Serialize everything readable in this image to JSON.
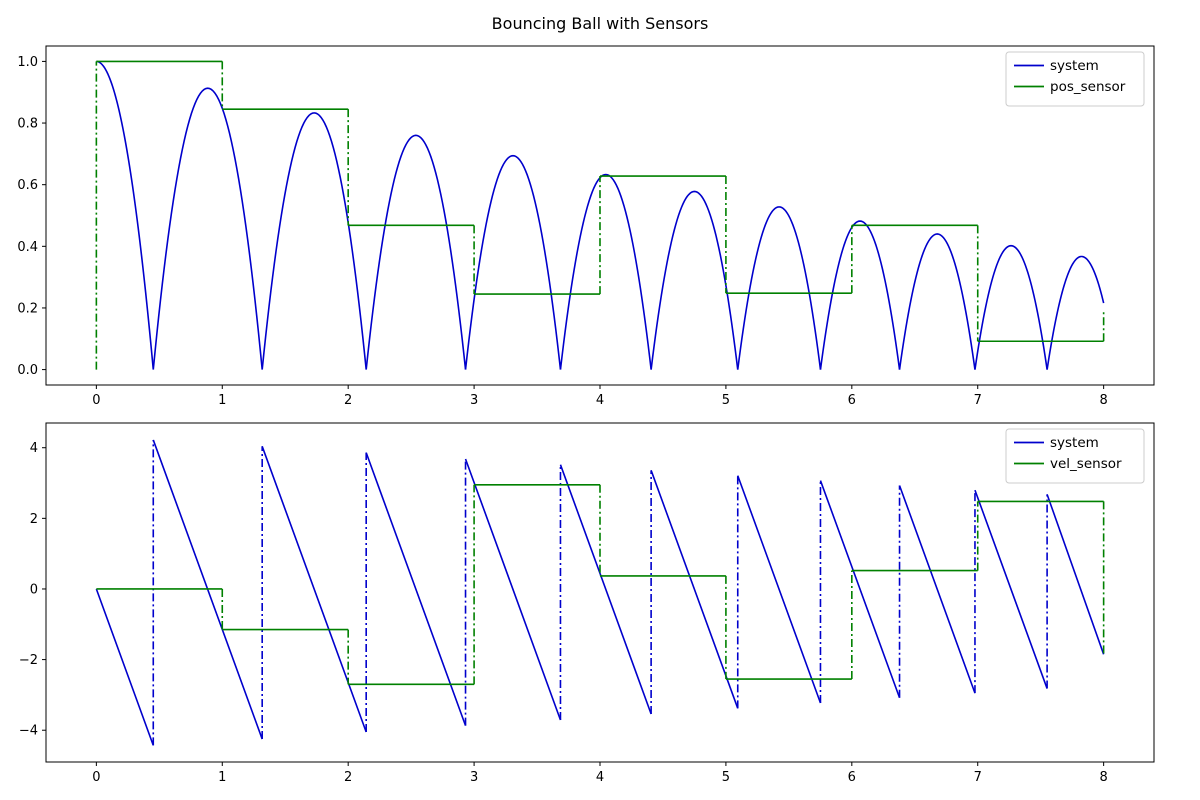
{
  "title": "Bouncing Ball with Sensors",
  "colors": {
    "system": "#0000cc",
    "sensor": "#008000"
  },
  "chart_data": [
    {
      "type": "line",
      "xlim": [
        -0.4,
        8.4
      ],
      "ylim": [
        -0.05,
        1.05
      ],
      "xticks": [
        0,
        1,
        2,
        3,
        4,
        5,
        6,
        7,
        8
      ],
      "xtick_labels": [
        "0",
        "1",
        "2",
        "3",
        "4",
        "5",
        "6",
        "7",
        "8"
      ],
      "yticks": [
        0.0,
        0.2,
        0.4,
        0.6,
        0.8,
        1.0
      ],
      "ytick_labels": [
        "0.0",
        "0.2",
        "0.4",
        "0.6",
        "0.8",
        "1.0"
      ],
      "legend_position": "top-right",
      "series": [
        {
          "name": "system",
          "style": "solid",
          "arcs": [
            {
              "x0": 0.0,
              "x1": 0.452,
              "peak": 1.0,
              "peak_at": "start"
            },
            {
              "x0": 0.452,
              "x1": 1.317,
              "peak": 0.913
            },
            {
              "x0": 1.317,
              "x1": 2.143,
              "peak": 0.833
            },
            {
              "x0": 2.143,
              "x1": 2.932,
              "peak": 0.76
            },
            {
              "x0": 2.932,
              "x1": 3.686,
              "peak": 0.694
            },
            {
              "x0": 3.686,
              "x1": 4.406,
              "peak": 0.633
            },
            {
              "x0": 4.406,
              "x1": 5.094,
              "peak": 0.578
            },
            {
              "x0": 5.094,
              "x1": 5.751,
              "peak": 0.528
            },
            {
              "x0": 5.751,
              "x1": 6.379,
              "peak": 0.482
            },
            {
              "x0": 6.379,
              "x1": 6.978,
              "peak": 0.44
            },
            {
              "x0": 6.978,
              "x1": 7.551,
              "peak": 0.402
            },
            {
              "x0": 7.551,
              "x1": 8.098,
              "peak": 0.367,
              "end_x": 8.0
            }
          ]
        },
        {
          "name": "pos_sensor",
          "style": "step",
          "start": [
            0,
            0.0
          ],
          "steps": [
            [
              0,
              1,
              1.0
            ],
            [
              1,
              2,
              0.845
            ],
            [
              2,
              3,
              0.468
            ],
            [
              3,
              4,
              0.245
            ],
            [
              4,
              5,
              0.628
            ],
            [
              5,
              6,
              0.248
            ],
            [
              6,
              7,
              0.468
            ],
            [
              7,
              8,
              0.092
            ]
          ],
          "end": [
            8,
            0.19
          ]
        }
      ]
    },
    {
      "type": "line",
      "xlim": [
        -0.4,
        8.4
      ],
      "ylim": [
        -4.9,
        4.7
      ],
      "xticks": [
        0,
        1,
        2,
        3,
        4,
        5,
        6,
        7,
        8
      ],
      "xtick_labels": [
        "0",
        "1",
        "2",
        "3",
        "4",
        "5",
        "6",
        "7",
        "8"
      ],
      "yticks": [
        -4,
        -2,
        0,
        2,
        4
      ],
      "ytick_labels": [
        "−4",
        "−2",
        "0",
        "2",
        "4"
      ],
      "legend_position": "top-right",
      "series": [
        {
          "name": "system",
          "style": "sawtooth",
          "segments": [
            [
              0.0,
              0.0,
              0.452,
              -4.43
            ],
            [
              0.452,
              4.22,
              1.317,
              -4.25
            ],
            [
              1.317,
              4.04,
              2.143,
              -4.05
            ],
            [
              2.143,
              3.86,
              2.932,
              -3.87
            ],
            [
              2.932,
              3.68,
              3.686,
              -3.71
            ],
            [
              3.686,
              3.52,
              4.406,
              -3.54
            ],
            [
              4.406,
              3.36,
              5.094,
              -3.38
            ],
            [
              5.094,
              3.21,
              5.751,
              -3.23
            ],
            [
              5.751,
              3.07,
              6.379,
              -3.08
            ],
            [
              6.379,
              2.93,
              6.978,
              -2.95
            ],
            [
              6.978,
              2.8,
              7.551,
              -2.82
            ],
            [
              7.551,
              2.68,
              8.0,
              -1.85
            ]
          ]
        },
        {
          "name": "vel_sensor",
          "style": "step",
          "start": [
            0,
            0.0
          ],
          "steps": [
            [
              0,
              1,
              0.0
            ],
            [
              1,
              2,
              -1.15
            ],
            [
              2,
              3,
              -2.7
            ],
            [
              3,
              4,
              2.95
            ],
            [
              4,
              5,
              0.37
            ],
            [
              5,
              6,
              -2.55
            ],
            [
              6,
              7,
              0.52
            ],
            [
              7,
              8,
              2.48
            ]
          ],
          "end": [
            8,
            -1.85
          ]
        }
      ]
    }
  ]
}
